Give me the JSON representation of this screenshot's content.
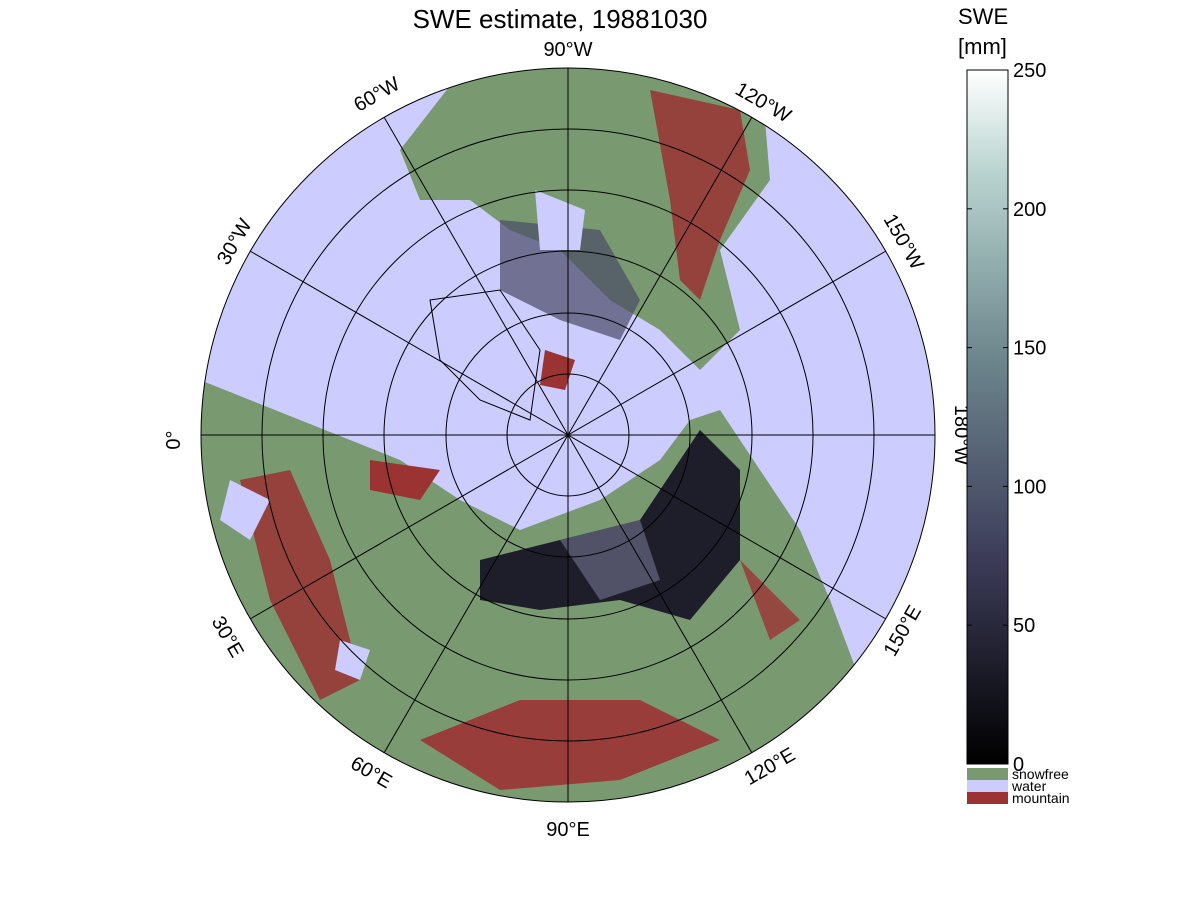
{
  "header": {
    "title": "SWE estimate, 19881030"
  },
  "map": {
    "longitude_labels": [
      "90°W",
      "120°W",
      "150°W",
      "180°W",
      "150°E",
      "120°E",
      "90°E",
      "60°E",
      "30°E",
      "0°",
      "30°W",
      "60°W"
    ]
  },
  "colorbar": {
    "title": [
      "SWE",
      "[mm]"
    ],
    "range": [
      0,
      250
    ],
    "ticks": [
      0,
      50,
      100,
      150,
      200,
      250
    ]
  },
  "legend": [
    {
      "label": "snowfree",
      "color": "#799a70"
    },
    {
      "label": "water",
      "color": "#ccccff"
    },
    {
      "label": "mountain",
      "color": "#9b3333"
    }
  ]
}
